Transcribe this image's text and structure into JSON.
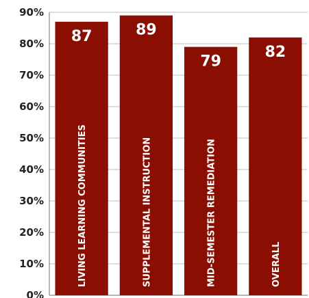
{
  "chart_data": {
    "type": "bar",
    "categories": [
      "LIVING LEARNING COMMUNITIES",
      "SUPPLEMENTAL INSTRUCTION",
      "MID-SEMESTER REMEDIATION",
      "OVERALL"
    ],
    "values": [
      87,
      89,
      79,
      82
    ],
    "data_labels": [
      "87",
      "89",
      "79",
      "82"
    ],
    "y_ticks": [
      "0%",
      "10%",
      "20%",
      "30%",
      "40%",
      "50%",
      "60%",
      "70%",
      "80%",
      "90%"
    ],
    "ylim": [
      0,
      90
    ],
    "title": "",
    "xlabel": "",
    "ylabel": "",
    "grid": true,
    "bar_color": "#8b0e02",
    "category_labels_inside_bars": true
  }
}
